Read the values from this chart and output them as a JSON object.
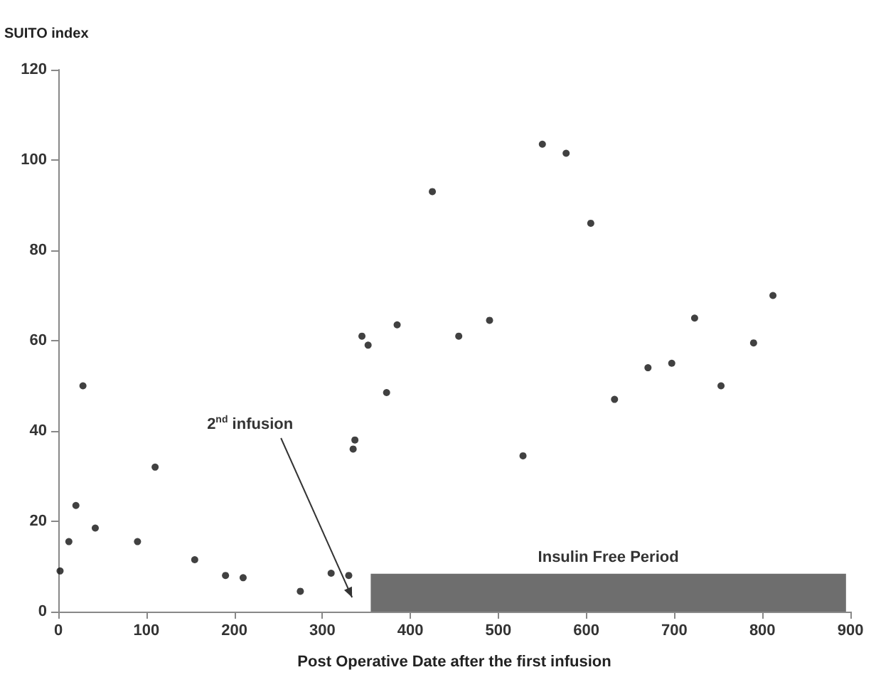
{
  "chart_data": {
    "type": "scatter",
    "ylabel": "SUITO index",
    "xlabel": "Post Operative Date after the first infusion",
    "x": [
      2,
      12,
      20,
      28,
      42,
      90,
      110,
      155,
      190,
      210,
      275,
      310,
      330,
      335,
      337,
      345,
      352,
      373,
      385,
      425,
      455,
      490,
      528,
      550,
      577,
      605,
      632,
      670,
      697,
      723,
      753,
      790,
      812
    ],
    "values": [
      9,
      15.5,
      23.5,
      50,
      18.5,
      15.5,
      32,
      11.5,
      8,
      7.5,
      4.5,
      8.5,
      8,
      36,
      38,
      61,
      59,
      48.5,
      63.5,
      93,
      61,
      64.5,
      34.5,
      103.5,
      101.5,
      86,
      47,
      54,
      55,
      65,
      50,
      59.5,
      70
    ],
    "color": "#111111",
    "marker": "circle",
    "xlim": [
      0,
      900
    ],
    "xticks": [
      0,
      100,
      200,
      300,
      400,
      500,
      600,
      700,
      800,
      900
    ],
    "ylim": [
      0,
      120
    ],
    "yticks": [
      0,
      20,
      40,
      60,
      80,
      100,
      120
    ],
    "grid": false,
    "bands": [
      {
        "axis": "x",
        "from": 355,
        "to": 895,
        "label": "Insulin Free Period",
        "color": "#6e6e6e"
      }
    ],
    "annotations": [
      "2$^{nd}$ infusion"
    ]
  }
}
